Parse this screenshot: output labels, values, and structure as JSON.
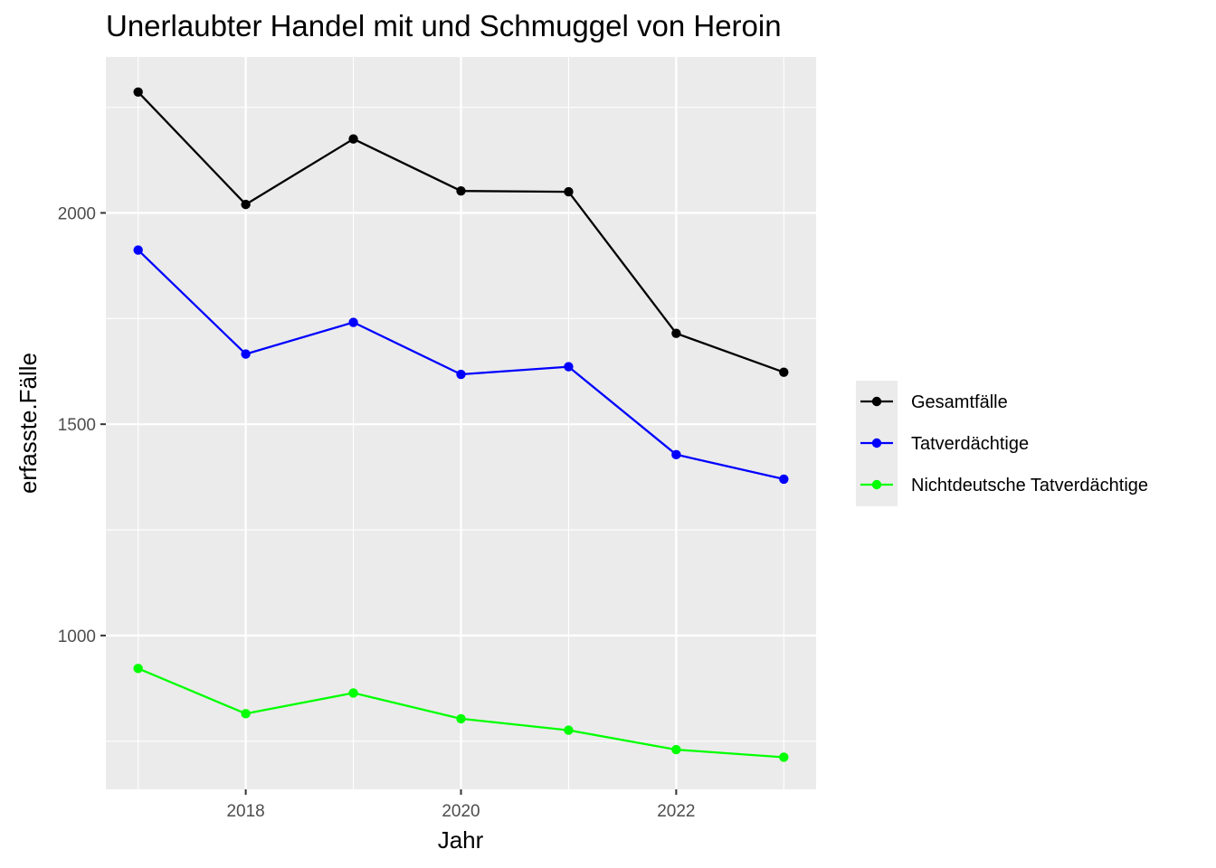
{
  "chart_data": {
    "type": "line",
    "title": "Unerlaubter Handel mit und Schmuggel von Heroin",
    "xlabel": "Jahr",
    "ylabel": "erfasste.Fälle",
    "x": [
      2017,
      2018,
      2019,
      2020,
      2021,
      2022,
      2023
    ],
    "xlim": [
      2016.7,
      2023.3
    ],
    "ylim": [
      636,
      2369
    ],
    "x_ticks": [
      2018,
      2020,
      2022
    ],
    "y_ticks": [
      1000,
      1500,
      2000
    ],
    "grid": true,
    "legend_position": "right",
    "series": [
      {
        "name": "Gesamtfälle",
        "color": "#000000",
        "values": [
          2286,
          2020,
          2175,
          2052,
          2050,
          1715,
          1623
        ]
      },
      {
        "name": "Tatverdächtige",
        "color": "#0000ff",
        "values": [
          1912,
          1666,
          1741,
          1618,
          1636,
          1428,
          1370
        ]
      },
      {
        "name": "Nichtdeutsche Tatverdächtige",
        "color": "#00ff00",
        "values": [
          922,
          815,
          864,
          803,
          776,
          730,
          712
        ]
      }
    ]
  }
}
